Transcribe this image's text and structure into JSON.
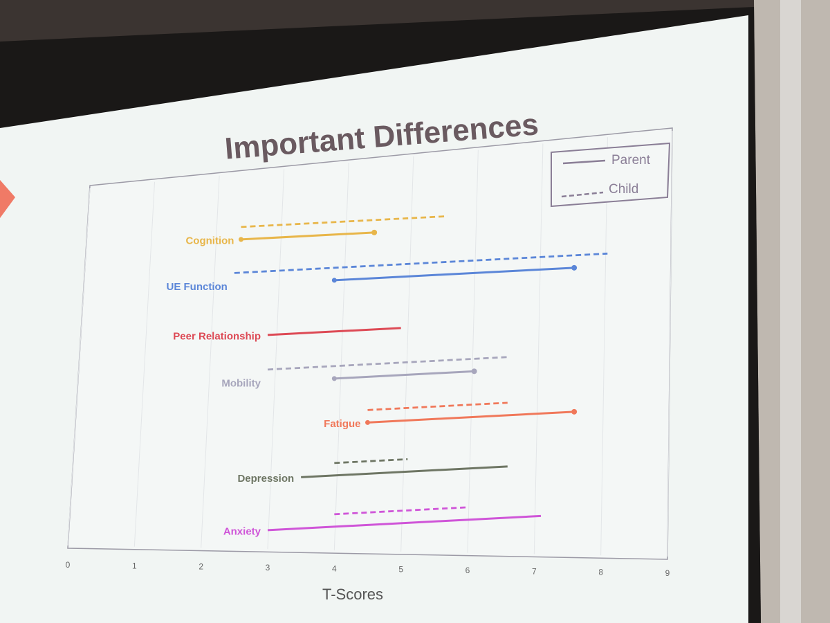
{
  "chart_data": {
    "type": "range",
    "title": "Important Differences",
    "xlabel": "T-Scores",
    "xlim": [
      0,
      9
    ],
    "x_ticks": [
      0,
      1,
      2,
      3,
      4,
      5,
      6,
      7,
      8,
      9
    ],
    "grid": "vertical",
    "legend": {
      "placement": "top-right",
      "entries": [
        {
          "label": "Parent",
          "style": "solid"
        },
        {
          "label": "Child",
          "style": "dashed"
        }
      ]
    },
    "categories": [
      {
        "name": "Cognition",
        "color": "#e8b64a",
        "parent": {
          "start": 2.6,
          "end": 4.6,
          "markers": true
        },
        "child": {
          "start": 2.6,
          "end": 5.7
        }
      },
      {
        "name": "UE Function",
        "color": "#5b86d8",
        "parent": {
          "start": 4.0,
          "end": 7.6,
          "markers": true
        },
        "child": {
          "start": 2.5,
          "end": 8.1
        }
      },
      {
        "name": "Peer Relationship",
        "color": "#dd4a55",
        "parent": {
          "start": 3.0,
          "end": 5.0,
          "markers": false
        },
        "child": null
      },
      {
        "name": "Mobility",
        "color": "#a7a6bc",
        "parent": {
          "start": 4.0,
          "end": 6.1,
          "markers": true
        },
        "child": {
          "start": 3.0,
          "end": 6.6
        }
      },
      {
        "name": "Fatigue",
        "color": "#f0785a",
        "parent": {
          "start": 4.5,
          "end": 7.6,
          "markers": true
        },
        "child": {
          "start": 4.5,
          "end": 6.6
        }
      },
      {
        "name": "Depression",
        "color": "#6e7664",
        "parent": {
          "start": 3.5,
          "end": 6.6,
          "markers": false
        },
        "child": {
          "start": 4.0,
          "end": 5.1
        }
      },
      {
        "name": "Anxiety",
        "color": "#cf55d8",
        "parent": {
          "start": 3.0,
          "end": 7.1,
          "markers": false
        },
        "child": {
          "start": 4.0,
          "end": 6.0
        }
      }
    ]
  }
}
